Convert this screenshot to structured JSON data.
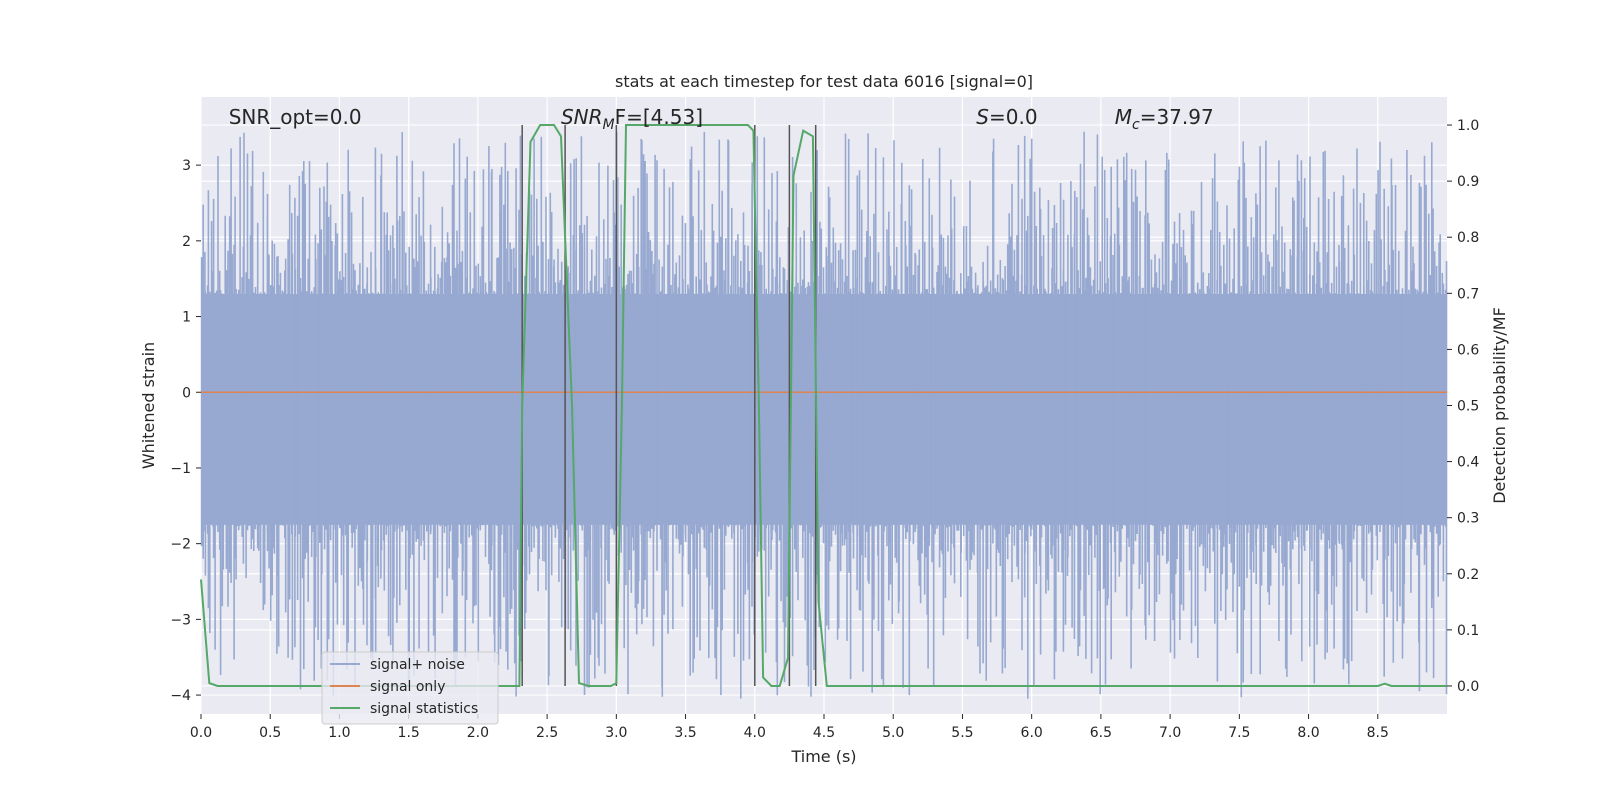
{
  "chart_data": {
    "type": "line",
    "title": "stats at each timestep for test data 6016 [signal=0]",
    "xlabel": "Time (s)",
    "ylabel": "Whitened strain",
    "y2label": "Detection probability/MF",
    "xlim": [
      0,
      9.0
    ],
    "ylim": [
      -4.25,
      3.9
    ],
    "y2lim": [
      -0.05,
      1.05
    ],
    "xticks": [
      "0.0",
      "0.5",
      "1.0",
      "1.5",
      "2.0",
      "2.5",
      "3.0",
      "3.5",
      "4.0",
      "4.5",
      "5.0",
      "5.5",
      "6.0",
      "6.5",
      "7.0",
      "7.5",
      "8.0",
      "8.5"
    ],
    "yticks": [
      "3",
      "2",
      "1",
      "0",
      "−1",
      "−2",
      "−3",
      "−4"
    ],
    "y2ticks": [
      "1.0",
      "0.9",
      "0.8",
      "0.7",
      "0.6",
      "0.5",
      "0.4",
      "0.3",
      "0.2",
      "0.1",
      "0.0"
    ],
    "grid": true,
    "legend_position": "lower-left",
    "annotations": {
      "snr_opt": "SNR_opt=0.0",
      "snr_mf_main": "SNR",
      "snr_mf_sub": "M",
      "snr_mf_rest": "F=[4.53]",
      "s_main": "S",
      "s_rest": "=0.0",
      "mc_main": "M",
      "mc_sub": "c",
      "mc_rest": "=37.97"
    },
    "series": [
      {
        "name": "signal+ noise",
        "color": "#97a9d0",
        "envelope_upper": 1.3,
        "envelope_lower": -1.75,
        "peak_max": 3.45,
        "trough_min": -4.05
      },
      {
        "name": "signal only",
        "color": "#dd8452",
        "values": [
          [
            0,
            0
          ],
          [
            9.0,
            0
          ]
        ]
      },
      {
        "name": "signal statistics",
        "color": "#55a868",
        "axis": "right",
        "points": [
          [
            0.0,
            0.19
          ],
          [
            0.06,
            0.005
          ],
          [
            0.12,
            0.0
          ],
          [
            0.8,
            0.0
          ],
          [
            2.3,
            0.0
          ],
          [
            2.32,
            0.5
          ],
          [
            2.38,
            0.97
          ],
          [
            2.45,
            1.0
          ],
          [
            2.55,
            1.0
          ],
          [
            2.6,
            0.98
          ],
          [
            2.68,
            0.5
          ],
          [
            2.73,
            0.005
          ],
          [
            2.8,
            0.0
          ],
          [
            2.96,
            0.0
          ],
          [
            3.0,
            0.005
          ],
          [
            3.04,
            0.5
          ],
          [
            3.07,
            1.0
          ],
          [
            3.5,
            1.0
          ],
          [
            3.95,
            1.0
          ],
          [
            3.99,
            0.99
          ],
          [
            4.03,
            0.5
          ],
          [
            4.06,
            0.015
          ],
          [
            4.12,
            0.0
          ],
          [
            4.18,
            0.0
          ],
          [
            4.24,
            0.05
          ],
          [
            4.28,
            0.91
          ],
          [
            4.35,
            0.99
          ],
          [
            4.42,
            0.98
          ],
          [
            4.46,
            0.15
          ],
          [
            4.52,
            0.0
          ],
          [
            8.5,
            0.0
          ],
          [
            8.55,
            0.004
          ],
          [
            8.6,
            0.0
          ],
          [
            9.0,
            0.0
          ]
        ]
      }
    ],
    "vertical_markers": [
      2.32,
      2.63,
      3.0,
      4.0,
      4.25,
      4.44
    ],
    "marker_color": "#555555"
  }
}
